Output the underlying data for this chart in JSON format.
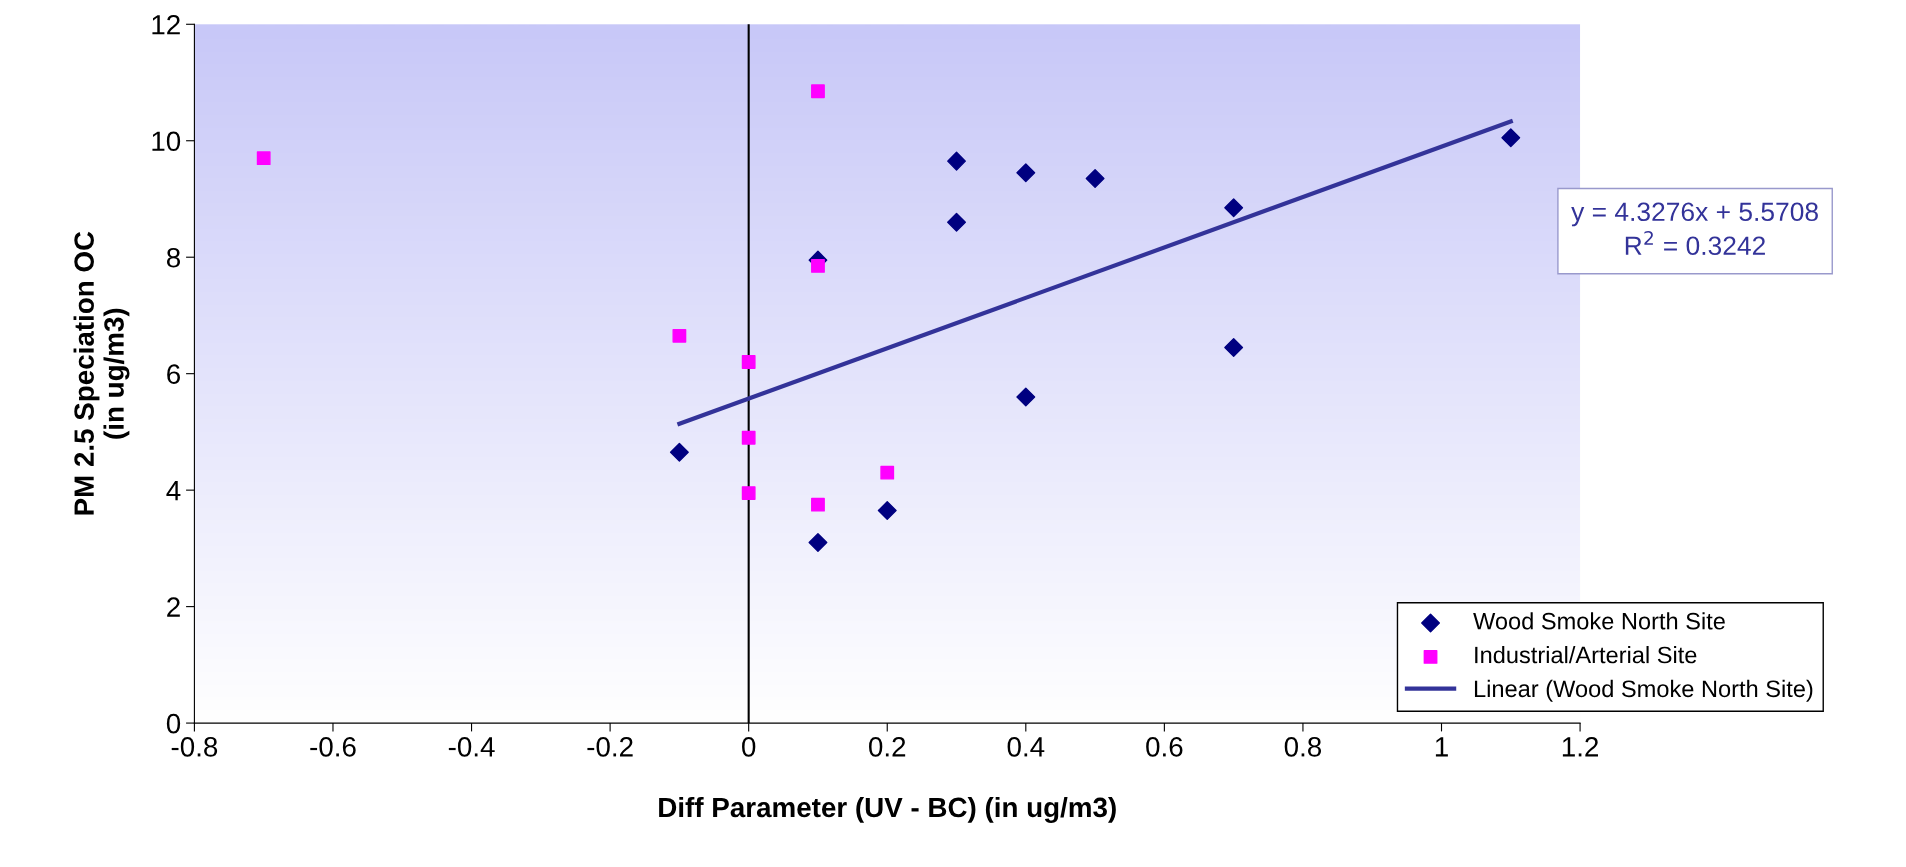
{
  "chart_data": {
    "type": "scatter",
    "xlabel": "Diff Parameter (UV - BC) (in ug/m3)",
    "ylabel": "PM 2.5 Speciation OC\n(in ug/m3)",
    "xlim": [
      -0.8,
      1.2
    ],
    "xticks": [
      -0.8,
      -0.6,
      -0.4,
      -0.2,
      0,
      0.2,
      0.4,
      0.6,
      0.8,
      1,
      1.2
    ],
    "ylim": [
      0,
      12
    ],
    "yticks": [
      0,
      2,
      4,
      6,
      8,
      10,
      12
    ],
    "grid": false,
    "legend": "bottom right",
    "series": [
      {
        "name": "Wood Smoke North Site",
        "color": "#000080",
        "marker": "diamond",
        "x": [
          -0.1,
          0.1,
          0.1,
          0.2,
          0.3,
          0.3,
          0.4,
          0.4,
          0.5,
          0.7,
          0.7,
          1.1
        ],
        "values": [
          4.65,
          3.1,
          7.95,
          3.65,
          9.65,
          8.6,
          9.45,
          5.6,
          9.35,
          8.85,
          6.45,
          10.05
        ]
      },
      {
        "name": "Industrial/Arterial Site",
        "color": "#ff00ff",
        "marker": "square",
        "x": [
          -0.7,
          -0.1,
          0,
          0,
          0,
          0.1,
          0.1,
          0.1,
          0.2
        ],
        "values": [
          9.7,
          6.65,
          6.2,
          4.9,
          3.95,
          10.85,
          7.85,
          3.75,
          4.3
        ]
      },
      {
        "name": "Linear (Wood Smoke North Site)",
        "type": "line",
        "color": "#333399",
        "marker": "none",
        "line_style": "solid",
        "x": [
          -0.1,
          1.1
        ],
        "values": [
          5.14,
          10.33
        ]
      }
    ],
    "ref_lines": [
      {
        "axis": "x",
        "value": 0,
        "color": "#000000",
        "line_style": "solid"
      }
    ],
    "annotations": [
      "y = 4.3276x + 5.5708\nR$^{2}$ = 0.3242"
    ]
  }
}
